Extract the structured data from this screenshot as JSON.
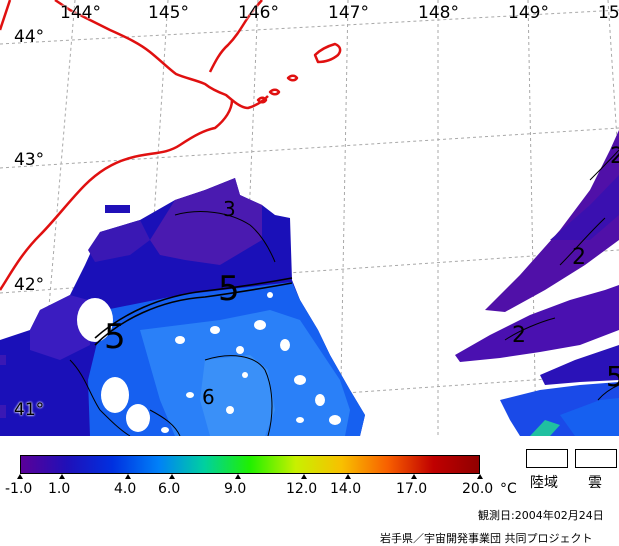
{
  "map": {
    "longitude_labels": [
      "144°",
      "145°",
      "146°",
      "147°",
      "148°",
      "149°",
      "15"
    ],
    "latitude_labels": [
      "44°",
      "43°",
      "42°",
      "41°"
    ],
    "contour_labels": [
      "3",
      "5",
      "5",
      "6",
      "2",
      "2",
      "2",
      "5"
    ],
    "coastline_color": "#e01010",
    "graticule_color": "#a0a0a0"
  },
  "colorbar": {
    "tick_labels": [
      "-1.0",
      "1.0",
      "4.0",
      "6.0",
      "9.0",
      "12.0",
      "14.0",
      "17.0",
      "20.0"
    ],
    "unit": "°C",
    "range": [
      -1.0,
      20.0
    ],
    "colors": [
      "#5a0098",
      "#2010b8",
      "#0030e0",
      "#0080f8",
      "#00d0a0",
      "#20f000",
      "#c8f000",
      "#f8c000",
      "#f86000",
      "#c00000",
      "#900000"
    ]
  },
  "legend": {
    "land_label": "陸域",
    "cloud_label": "雲"
  },
  "footer": {
    "date": "観測日:2004年02月24日",
    "credit": "岩手県／宇宙開発事業団 共同プロジェクト"
  }
}
